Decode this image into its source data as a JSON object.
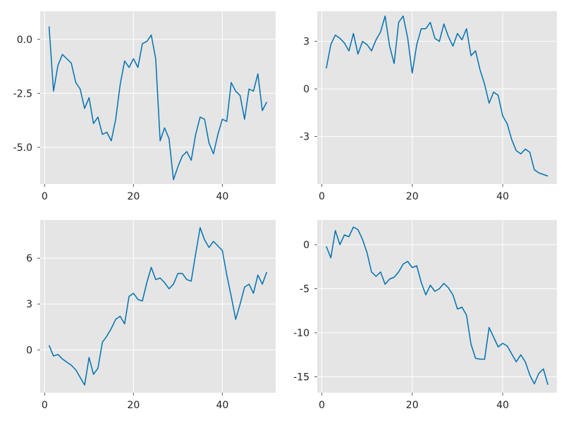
{
  "figure": {
    "background": "#ffffff",
    "panel_background": "#e5e5e5",
    "grid_color": "#ffffff",
    "line_color": "#0072b2"
  },
  "chart_data": [
    {
      "type": "line",
      "position": "top-left",
      "grid": true,
      "xlim": [
        -1,
        52
      ],
      "ylim": [
        -6.7,
        1.3
      ],
      "xticks": [
        0,
        20,
        40
      ],
      "yticks": [
        0.0,
        -2.5,
        -5.0
      ],
      "xtick_labels": [
        "0",
        "20",
        "40"
      ],
      "ytick_labels": [
        "0.0",
        "-2.5",
        "-5.0"
      ],
      "series": [
        {
          "x": [
            1,
            2,
            3,
            4,
            5,
            6,
            7,
            8,
            9,
            10,
            11,
            12,
            13,
            14,
            15,
            16,
            17,
            18,
            19,
            20,
            21,
            22,
            23,
            24,
            25,
            26,
            27,
            28,
            29,
            30,
            31,
            32,
            33,
            34,
            35,
            36,
            37,
            38,
            39,
            40,
            41,
            42,
            43,
            44,
            45,
            46,
            47,
            48,
            49,
            50
          ],
          "values": [
            0.6,
            -2.4,
            -1.2,
            -0.7,
            -0.9,
            -1.1,
            -2.0,
            -2.3,
            -3.2,
            -2.7,
            -3.9,
            -3.6,
            -4.4,
            -4.3,
            -4.7,
            -3.7,
            -2.1,
            -1.0,
            -1.3,
            -0.9,
            -1.3,
            -0.2,
            -0.1,
            0.2,
            -0.9,
            -4.7,
            -4.1,
            -4.6,
            -6.5,
            -5.9,
            -5.4,
            -5.2,
            -5.6,
            -4.4,
            -3.6,
            -3.7,
            -4.8,
            -5.3,
            -4.4,
            -3.7,
            -3.8,
            -2.0,
            -2.4,
            -2.6,
            -3.7,
            -2.3,
            -2.4,
            -1.6,
            -3.3,
            -2.9
          ]
        }
      ]
    },
    {
      "type": "line",
      "position": "top-right",
      "grid": true,
      "xlim": [
        -1,
        52
      ],
      "ylim": [
        -6.0,
        4.9
      ],
      "xticks": [
        0,
        20,
        40
      ],
      "yticks": [
        3,
        0,
        -3
      ],
      "xtick_labels": [
        "0",
        "20",
        "40"
      ],
      "ytick_labels": [
        "3",
        "0",
        "-3"
      ],
      "series": [
        {
          "x": [
            1,
            2,
            3,
            4,
            5,
            6,
            7,
            8,
            9,
            10,
            11,
            12,
            13,
            14,
            15,
            16,
            17,
            18,
            19,
            20,
            21,
            22,
            23,
            24,
            25,
            26,
            27,
            28,
            29,
            30,
            31,
            32,
            33,
            34,
            35,
            36,
            37,
            38,
            39,
            40,
            41,
            42,
            43,
            44,
            45,
            46,
            47,
            48,
            49,
            50
          ],
          "values": [
            1.3,
            2.8,
            3.4,
            3.2,
            2.9,
            2.4,
            3.5,
            2.2,
            3.0,
            2.8,
            2.4,
            3.1,
            3.6,
            4.6,
            2.7,
            1.6,
            4.2,
            4.6,
            3.2,
            1.0,
            2.8,
            3.8,
            3.8,
            4.2,
            3.2,
            3.0,
            4.1,
            3.3,
            2.7,
            3.5,
            3.1,
            3.8,
            2.1,
            2.4,
            1.2,
            0.3,
            -0.9,
            -0.2,
            -0.4,
            -1.7,
            -2.2,
            -3.2,
            -3.9,
            -4.1,
            -3.8,
            -4.0,
            -5.1,
            -5.3,
            -5.4,
            -5.5
          ]
        }
      ]
    },
    {
      "type": "line",
      "position": "bottom-left",
      "grid": true,
      "xlim": [
        -1,
        52
      ],
      "ylim": [
        -2.8,
        8.5
      ],
      "xticks": [
        0,
        20,
        40
      ],
      "yticks": [
        6,
        3,
        0
      ],
      "xtick_labels": [
        "0",
        "20",
        "40"
      ],
      "ytick_labels": [
        "6",
        "3",
        "0"
      ],
      "series": [
        {
          "x": [
            1,
            2,
            3,
            4,
            5,
            6,
            7,
            8,
            9,
            10,
            11,
            12,
            13,
            14,
            15,
            16,
            17,
            18,
            19,
            20,
            21,
            22,
            23,
            24,
            25,
            26,
            27,
            28,
            29,
            30,
            31,
            32,
            33,
            34,
            35,
            36,
            37,
            38,
            39,
            40,
            41,
            42,
            43,
            44,
            45,
            46,
            47,
            48,
            49,
            50
          ],
          "values": [
            0.3,
            -0.4,
            -0.3,
            -0.6,
            -0.8,
            -1.0,
            -1.3,
            -1.8,
            -2.3,
            -0.5,
            -1.6,
            -1.2,
            0.5,
            0.9,
            1.4,
            2.0,
            2.2,
            1.7,
            3.5,
            3.7,
            3.3,
            3.2,
            4.4,
            5.4,
            4.6,
            4.7,
            4.4,
            4.0,
            4.3,
            5.0,
            5.0,
            4.6,
            4.5,
            6.3,
            8.0,
            7.2,
            6.7,
            7.1,
            6.8,
            6.5,
            4.9,
            3.5,
            2.0,
            3.0,
            4.1,
            4.3,
            3.7,
            4.9,
            4.3,
            5.1
          ]
        }
      ]
    },
    {
      "type": "line",
      "position": "bottom-right",
      "grid": true,
      "xlim": [
        -1,
        52
      ],
      "ylim": [
        -16.8,
        2.8
      ],
      "xticks": [
        0,
        20,
        40
      ],
      "yticks": [
        0,
        -5,
        -10,
        -15
      ],
      "xtick_labels": [
        "0",
        "20",
        "40"
      ],
      "ytick_labels": [
        "0",
        "-5",
        "-10",
        "-15"
      ],
      "series": [
        {
          "x": [
            1,
            2,
            3,
            4,
            5,
            6,
            7,
            8,
            9,
            10,
            11,
            12,
            13,
            14,
            15,
            16,
            17,
            18,
            19,
            20,
            21,
            22,
            23,
            24,
            25,
            26,
            27,
            28,
            29,
            30,
            31,
            32,
            33,
            34,
            35,
            36,
            37,
            38,
            39,
            40,
            41,
            42,
            43,
            44,
            45,
            46,
            47,
            48,
            49,
            50
          ],
          "values": [
            -0.2,
            -1.5,
            1.6,
            0.0,
            1.1,
            0.9,
            2.0,
            1.7,
            0.6,
            -0.9,
            -3.1,
            -3.6,
            -3.1,
            -4.5,
            -3.9,
            -3.7,
            -3.1,
            -2.2,
            -1.9,
            -2.6,
            -2.4,
            -4.3,
            -5.7,
            -4.6,
            -5.3,
            -5.0,
            -4.4,
            -4.9,
            -5.7,
            -7.3,
            -7.1,
            -8.0,
            -11.3,
            -12.9,
            -13.0,
            -13.0,
            -9.4,
            -10.5,
            -11.6,
            -11.2,
            -11.5,
            -12.4,
            -13.3,
            -12.5,
            -13.3,
            -14.8,
            -15.8,
            -14.6,
            -14.1,
            -15.9
          ]
        }
      ]
    }
  ]
}
